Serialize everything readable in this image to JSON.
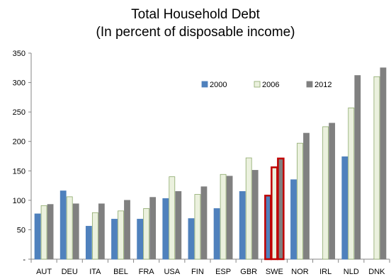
{
  "chart_data": {
    "type": "bar",
    "title": [
      "Total Household Debt",
      "(In percent of disposable income)"
    ],
    "xlabel": "",
    "ylabel": "",
    "ylim": [
      0,
      350
    ],
    "yticks": [
      0,
      50,
      100,
      150,
      200,
      250,
      300,
      350
    ],
    "ytick_labels": [
      "-",
      "50",
      "100",
      "150",
      "200",
      "250",
      "300",
      "350"
    ],
    "grid": false,
    "legend_position": "top-right",
    "categories": [
      "AUT",
      "DEU",
      "ITA",
      "BEL",
      "FRA",
      "USA",
      "FIN",
      "ESP",
      "GBR",
      "SWE",
      "NOR",
      "IRL",
      "NLD",
      "DNK"
    ],
    "highlighted_category": "SWE",
    "highlight_color": "#C00000",
    "series": [
      {
        "name": "2000",
        "color": "#4F81BD",
        "border": "#4F81BD",
        "values": [
          77,
          116,
          56,
          68,
          68,
          103,
          69,
          86,
          115,
          108,
          135,
          null,
          174,
          null
        ]
      },
      {
        "name": "2006",
        "color": "#EBF1DE",
        "border": "#8CA86A",
        "values": [
          91,
          106,
          79,
          82,
          86,
          140,
          110,
          144,
          172,
          156,
          197,
          225,
          257,
          310
        ]
      },
      {
        "name": "2012",
        "color": "#808080",
        "border": "#808080",
        "values": [
          93,
          94,
          94,
          100,
          105,
          115,
          123,
          141,
          151,
          171,
          214,
          231,
          312,
          325
        ]
      }
    ]
  }
}
